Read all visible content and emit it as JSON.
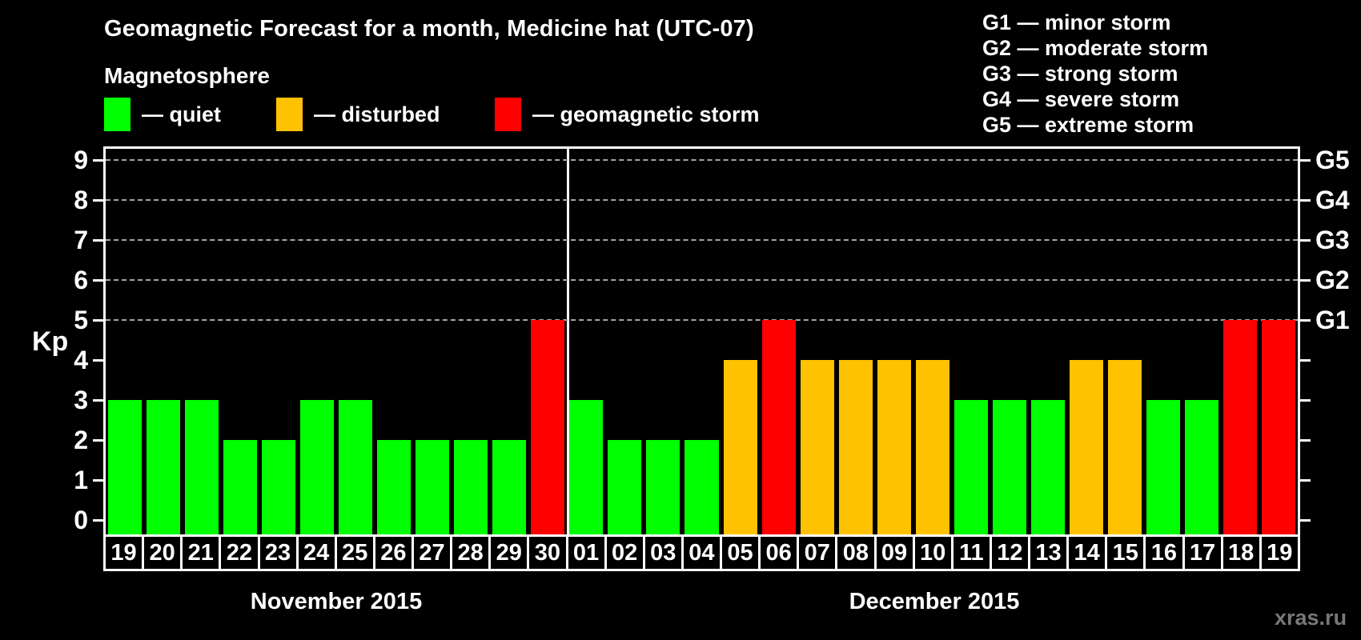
{
  "title": "Geomagnetic Forecast for a month, Medicine hat (UTC-07)",
  "legend": {
    "heading": "Magnetosphere",
    "items": [
      {
        "key": "quiet",
        "label": "— quiet",
        "color": "#00ff00"
      },
      {
        "key": "disturbed",
        "label": "— disturbed",
        "color": "#ffc200"
      },
      {
        "key": "storm",
        "label": "— geomagnetic storm",
        "color": "#ff0000"
      }
    ]
  },
  "g_legend": {
    "items": [
      {
        "text": "G1 — minor storm"
      },
      {
        "text": "G2 — moderate storm"
      },
      {
        "text": "G3 — strong storm"
      },
      {
        "text": "G4 — severe storm"
      },
      {
        "text": "G5 — extreme storm"
      }
    ]
  },
  "watermark": "xras.ru",
  "chart_data": {
    "type": "bar",
    "title": "Geomagnetic Forecast for a month, Medicine hat (UTC-07)",
    "xlabel": "",
    "ylabel": "Kp",
    "ylim": [
      0,
      9
    ],
    "y_ticks": [
      0,
      1,
      2,
      3,
      4,
      5,
      6,
      7,
      8,
      9
    ],
    "gridlines_at": [
      5,
      6,
      7,
      8,
      9
    ],
    "grid": true,
    "legend_position": "top",
    "right_axis": [
      {
        "label": "G1",
        "kp": 5
      },
      {
        "label": "G2",
        "kp": 6
      },
      {
        "label": "G3",
        "kp": 7
      },
      {
        "label": "G4",
        "kp": 8
      },
      {
        "label": "G5",
        "kp": 9
      }
    ],
    "status_colors": {
      "quiet": "#00ff00",
      "disturbed": "#ffc200",
      "storm": "#ff0000"
    },
    "series": [
      {
        "name": "November 2015",
        "categories": [
          "19",
          "20",
          "21",
          "22",
          "23",
          "24",
          "25",
          "26",
          "27",
          "28",
          "29",
          "30"
        ],
        "values": [
          3,
          3,
          3,
          2,
          2,
          3,
          3,
          2,
          2,
          2,
          2,
          5
        ],
        "statuses": [
          "quiet",
          "quiet",
          "quiet",
          "quiet",
          "quiet",
          "quiet",
          "quiet",
          "quiet",
          "quiet",
          "quiet",
          "quiet",
          "storm"
        ]
      },
      {
        "name": "December 2015",
        "categories": [
          "01",
          "02",
          "03",
          "04",
          "05",
          "06",
          "07",
          "08",
          "09",
          "10",
          "11",
          "12",
          "13",
          "14",
          "15",
          "16",
          "17",
          "18",
          "19"
        ],
        "values": [
          3,
          2,
          2,
          2,
          4,
          5,
          4,
          4,
          4,
          4,
          3,
          3,
          3,
          4,
          4,
          3,
          3,
          5,
          5
        ],
        "statuses": [
          "quiet",
          "quiet",
          "quiet",
          "quiet",
          "disturbed",
          "storm",
          "disturbed",
          "disturbed",
          "disturbed",
          "disturbed",
          "quiet",
          "quiet",
          "quiet",
          "disturbed",
          "disturbed",
          "quiet",
          "quiet",
          "storm",
          "storm"
        ]
      }
    ]
  }
}
